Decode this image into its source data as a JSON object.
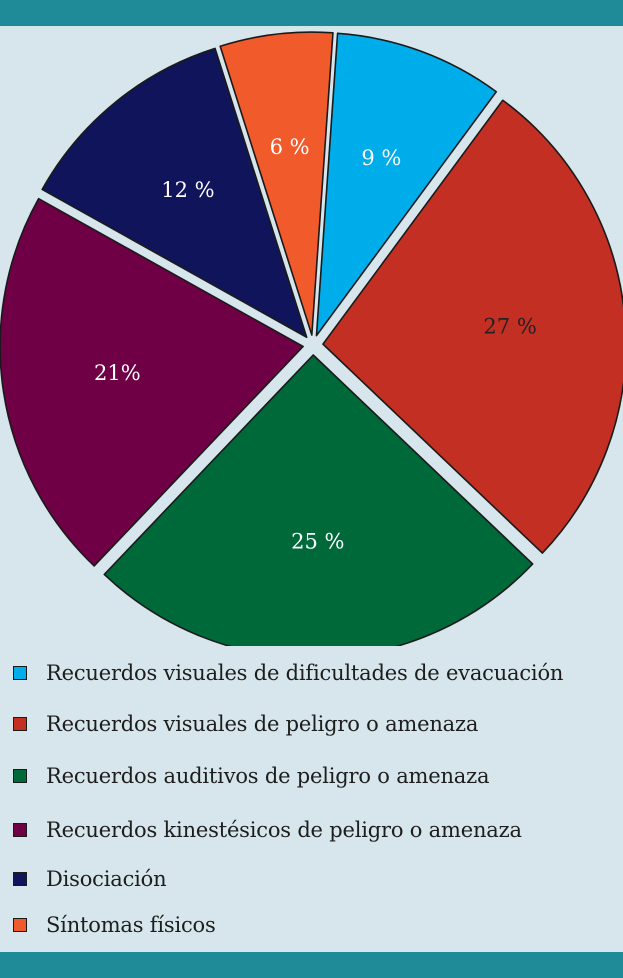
{
  "colors": {
    "background": "#d6e6ec",
    "band": "#1f8a98"
  },
  "chart_data": {
    "type": "pie",
    "title": "",
    "slices": [
      {
        "label": "Recuerdos visuales de dificultades de evacuación",
        "value": 9,
        "display": "9 %",
        "color": "#00adeb",
        "text_color": "#ffffff"
      },
      {
        "label": "Recuerdos visuales de peligro o amenaza",
        "value": 27,
        "display": "27 %",
        "color": "#c42f24",
        "text_color": "#222222"
      },
      {
        "label": "Recuerdos auditivos de peligro o amenaza",
        "value": 25,
        "display": "25 %",
        "color": "#00693a",
        "text_color": "#ffffff"
      },
      {
        "label": "Recuerdos kinestésicos de peligro o amenaza",
        "value": 21,
        "display": "21%",
        "color": "#700046",
        "text_color": "#ffffff"
      },
      {
        "label": "Disociación",
        "value": 12,
        "display": "12 %",
        "color": "#10145a",
        "text_color": "#ffffff"
      },
      {
        "label": "Síntomas físicos",
        "value": 6,
        "display": "6 %",
        "color": "#f15a2b",
        "text_color": "#ffffff"
      }
    ],
    "legend_position": "bottom"
  }
}
